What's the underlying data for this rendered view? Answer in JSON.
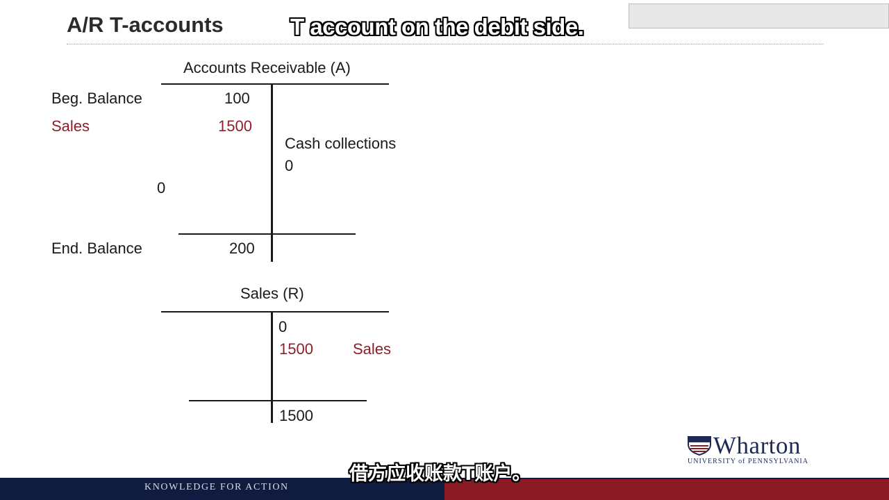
{
  "slide": {
    "title": "A/R T-accounts"
  },
  "captions": {
    "english": "T account on the debit side.",
    "chinese": "借方应收账款T账户。"
  },
  "ar_account": {
    "title": "Accounts Receivable (A)",
    "beg_label": "Beg. Balance",
    "beg_value": "100",
    "sales_label": "Sales",
    "sales_value": "1500",
    "cash_label": "Cash collections",
    "cash_value": "0",
    "debit_extra_value": "0",
    "end_label": "End. Balance",
    "end_value": "200"
  },
  "sales_account": {
    "title": "Sales (R)",
    "credit_value_1": "0",
    "credit_value_2": "1500",
    "credit_label": "Sales",
    "total_value": "1500"
  },
  "footer": {
    "tagline": "KNOWLEDGE FOR ACTION"
  },
  "logo": {
    "name": "Wharton",
    "subtitle": "UNIVERSITY of PENNSYLVANIA"
  },
  "colors": {
    "accent_red": "#8b1f2a",
    "footer_navy": "#0f1b3f",
    "footer_red": "#8a1b24"
  }
}
